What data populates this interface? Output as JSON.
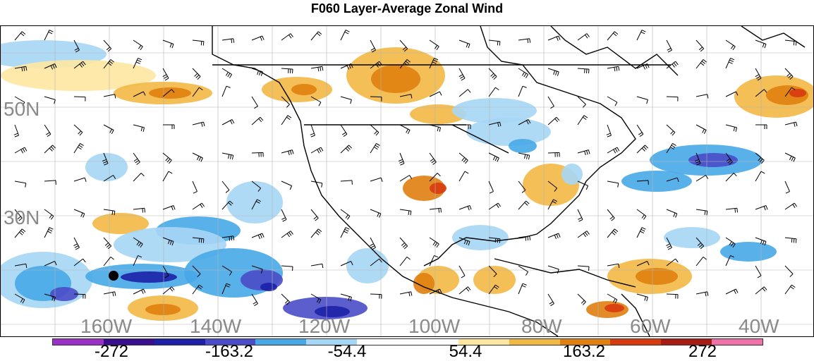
{
  "title": "F060 Layer-Average Zonal Wind",
  "map": {
    "lat_labels": [
      "50N",
      "30N"
    ],
    "lon_labels": [
      "160W",
      "140W",
      "120W",
      "100W",
      "80W",
      "60W",
      "40W"
    ],
    "marker_icon": "location-dot-icon"
  },
  "colorbar": {
    "colors": [
      "#9b30c9",
      "#3a0f8f",
      "#1c21a8",
      "#4a4cc8",
      "#47a8e8",
      "#a6d6f5",
      "#ffffff",
      "#ffffff",
      "#ffe7a1",
      "#f2b844",
      "#e08010",
      "#d83a10",
      "#a81a14",
      "#f070a8"
    ],
    "ticks": [
      "-272",
      "-163.2",
      "-54.4",
      "54.4",
      "163.2",
      "272"
    ]
  }
}
